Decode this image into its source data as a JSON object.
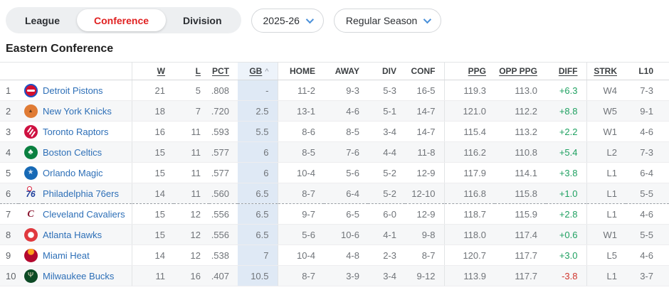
{
  "tabs": {
    "items": [
      {
        "label": "League",
        "active": false
      },
      {
        "label": "Conference",
        "active": true
      },
      {
        "label": "Division",
        "active": false
      }
    ]
  },
  "filters": {
    "season": "2025-26",
    "season_type": "Regular Season"
  },
  "heading": "Eastern Conference",
  "colors": {
    "active_tab_red": "#e02121",
    "link_blue": "#2d6fb7",
    "positive_green": "#1fa161",
    "negative_red": "#d0342c",
    "gb_highlight": "#dfe9f5"
  },
  "standings": {
    "sorted_by": "GB",
    "sort_direction": "asc",
    "sort_caret": "^",
    "playoff_cutoff_after_rank": 6,
    "columns": [
      {
        "key": "rank",
        "label": "",
        "underline": false
      },
      {
        "key": "logo",
        "label": "",
        "underline": false
      },
      {
        "key": "team",
        "label": "",
        "underline": false,
        "sep": true
      },
      {
        "key": "w",
        "label": "W",
        "underline": true
      },
      {
        "key": "l",
        "label": "L",
        "underline": true
      },
      {
        "key": "pct",
        "label": "PCT",
        "underline": true
      },
      {
        "key": "gb",
        "label": "GB",
        "underline": true,
        "caret": true,
        "sep": true
      },
      {
        "key": "home",
        "label": "HOME",
        "underline": false
      },
      {
        "key": "away",
        "label": "AWAY",
        "underline": false
      },
      {
        "key": "div",
        "label": "DIV",
        "underline": false
      },
      {
        "key": "conf",
        "label": "CONF",
        "underline": false,
        "sep": true
      },
      {
        "key": "ppg",
        "label": "PPG",
        "underline": true
      },
      {
        "key": "opp_ppg",
        "label": "OPP PPG",
        "underline": true
      },
      {
        "key": "diff",
        "label": "DIFF",
        "underline": true,
        "sep": true
      },
      {
        "key": "strk",
        "label": "STRK",
        "underline": true
      },
      {
        "key": "l10",
        "label": "L10",
        "underline": false
      }
    ],
    "logos": {
      "pistons": {
        "glyph": ""
      },
      "knicks": {
        "glyph": "▲"
      },
      "raptors": {
        "glyph": ""
      },
      "celtics": {
        "glyph": "♣"
      },
      "magic": {
        "glyph": "★"
      },
      "sixers": {
        "text": "76"
      },
      "cavs": {
        "text": "C"
      },
      "hawks": {
        "glyph": ""
      },
      "heat": {
        "glyph": ""
      },
      "bucks": {
        "glyph": "Ψ"
      }
    },
    "rows": [
      {
        "rank": "1",
        "logo": "pistons",
        "team": "Detroit Pistons",
        "w": "21",
        "l": "5",
        "pct": ".808",
        "gb": "-",
        "home": "11-2",
        "away": "9-3",
        "div": "5-3",
        "conf": "16-5",
        "ppg": "119.3",
        "opp_ppg": "113.0",
        "diff": "+6.3",
        "strk": "W4",
        "l10": "7-3"
      },
      {
        "rank": "2",
        "logo": "knicks",
        "team": "New York Knicks",
        "w": "18",
        "l": "7",
        "pct": ".720",
        "gb": "2.5",
        "home": "13-1",
        "away": "4-6",
        "div": "5-1",
        "conf": "14-7",
        "ppg": "121.0",
        "opp_ppg": "112.2",
        "diff": "+8.8",
        "strk": "W5",
        "l10": "9-1"
      },
      {
        "rank": "3",
        "logo": "raptors",
        "team": "Toronto Raptors",
        "w": "16",
        "l": "11",
        "pct": ".593",
        "gb": "5.5",
        "home": "8-6",
        "away": "8-5",
        "div": "3-4",
        "conf": "14-7",
        "ppg": "115.4",
        "opp_ppg": "113.2",
        "diff": "+2.2",
        "strk": "W1",
        "l10": "4-6"
      },
      {
        "rank": "4",
        "logo": "celtics",
        "team": "Boston Celtics",
        "w": "15",
        "l": "11",
        "pct": ".577",
        "gb": "6",
        "home": "8-5",
        "away": "7-6",
        "div": "4-4",
        "conf": "11-8",
        "ppg": "116.2",
        "opp_ppg": "110.8",
        "diff": "+5.4",
        "strk": "L2",
        "l10": "7-3"
      },
      {
        "rank": "5",
        "logo": "magic",
        "team": "Orlando Magic",
        "w": "15",
        "l": "11",
        "pct": ".577",
        "gb": "6",
        "home": "10-4",
        "away": "5-6",
        "div": "5-2",
        "conf": "12-9",
        "ppg": "117.9",
        "opp_ppg": "114.1",
        "diff": "+3.8",
        "strk": "L1",
        "l10": "6-4"
      },
      {
        "rank": "6",
        "logo": "sixers",
        "team": "Philadelphia 76ers",
        "w": "14",
        "l": "11",
        "pct": ".560",
        "gb": "6.5",
        "home": "8-7",
        "away": "6-4",
        "div": "5-2",
        "conf": "12-10",
        "ppg": "116.8",
        "opp_ppg": "115.8",
        "diff": "+1.0",
        "strk": "L1",
        "l10": "5-5"
      },
      {
        "rank": "7",
        "logo": "cavs",
        "team": "Cleveland Cavaliers",
        "w": "15",
        "l": "12",
        "pct": ".556",
        "gb": "6.5",
        "home": "9-7",
        "away": "6-5",
        "div": "6-0",
        "conf": "12-9",
        "ppg": "118.7",
        "opp_ppg": "115.9",
        "diff": "+2.8",
        "strk": "L1",
        "l10": "4-6"
      },
      {
        "rank": "8",
        "logo": "hawks",
        "team": "Atlanta Hawks",
        "w": "15",
        "l": "12",
        "pct": ".556",
        "gb": "6.5",
        "home": "5-6",
        "away": "10-6",
        "div": "4-1",
        "conf": "9-8",
        "ppg": "118.0",
        "opp_ppg": "117.4",
        "diff": "+0.6",
        "strk": "W1",
        "l10": "5-5"
      },
      {
        "rank": "9",
        "logo": "heat",
        "team": "Miami Heat",
        "w": "14",
        "l": "12",
        "pct": ".538",
        "gb": "7",
        "home": "10-4",
        "away": "4-8",
        "div": "2-3",
        "conf": "8-7",
        "ppg": "120.7",
        "opp_ppg": "117.7",
        "diff": "+3.0",
        "strk": "L5",
        "l10": "4-6"
      },
      {
        "rank": "10",
        "logo": "bucks",
        "team": "Milwaukee Bucks",
        "w": "11",
        "l": "16",
        "pct": ".407",
        "gb": "10.5",
        "home": "8-7",
        "away": "3-9",
        "div": "3-4",
        "conf": "9-12",
        "ppg": "113.9",
        "opp_ppg": "117.7",
        "diff": "-3.8",
        "strk": "L1",
        "l10": "3-7"
      }
    ]
  }
}
